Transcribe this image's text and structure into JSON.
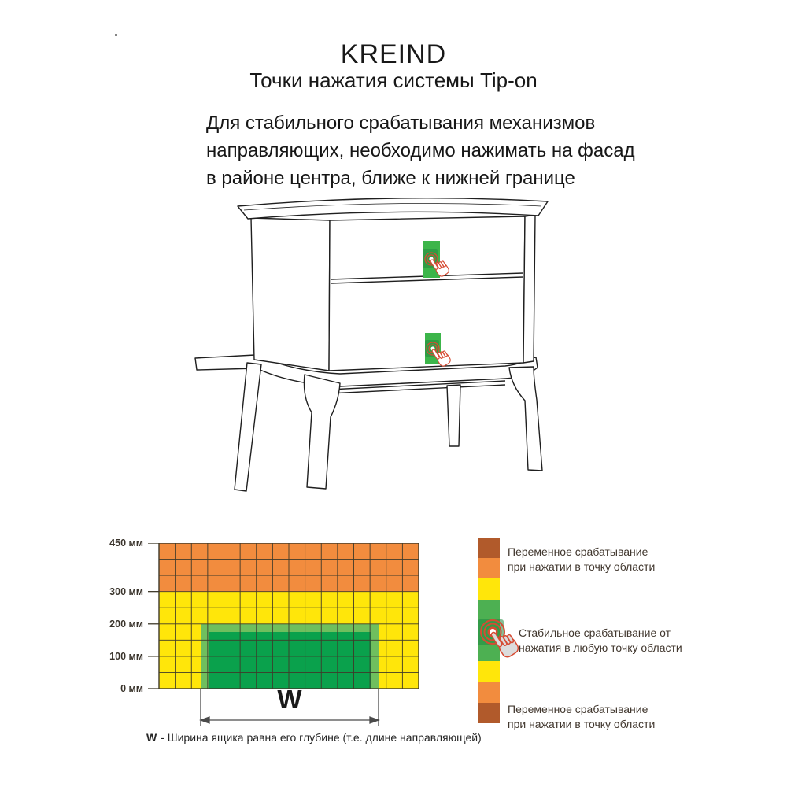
{
  "header": {
    "brand": "KREIND",
    "subtitle": "Точки нажатия системы Tip-on"
  },
  "intro": {
    "lines": [
      "Для стабильного срабатывания механизмов",
      "направляющих, необходимо нажимать на фасад",
      "в районе центра, ближе к нижней границе"
    ]
  },
  "furniture": {
    "press_zone_count": 2,
    "press_zone_color": "#3cb54a",
    "press_zone_inner_color": "#2a9643",
    "hand_ring_color": "#d64b33"
  },
  "chart_data": {
    "type": "heatmap",
    "title": "",
    "xlabel": "",
    "ylabel": "мм",
    "y_axis": {
      "unit": "мм",
      "range_mm": [
        0,
        450
      ],
      "ticks": [
        {
          "mm": 450,
          "label": "450 мм"
        },
        {
          "mm": 300,
          "label": "300 мм"
        },
        {
          "mm": 200,
          "label": "200 мм"
        },
        {
          "mm": 100,
          "label": "100 мм"
        },
        {
          "mm": 0,
          "label": "0 мм"
        }
      ]
    },
    "grid": {
      "columns": 16,
      "rows": 9,
      "cell_mm": 50,
      "lines_on": true
    },
    "zones": [
      {
        "name": "variable-upper",
        "color": "#f28c3e",
        "y_mm": [
          300,
          450
        ],
        "meaning": "Переменное срабатывание при нажатии в точку области"
      },
      {
        "name": "caution",
        "color": "#ffe60a",
        "y_mm": [
          0,
          300
        ],
        "meaning": "Переменное срабатывание при нажатии в точку области"
      },
      {
        "name": "stable-border",
        "color": "#6fbf5e",
        "y_mm": [
          0,
          200
        ],
        "meaning": "Стабильное срабатывание от нажатия в любую точку области"
      },
      {
        "name": "stable-core",
        "color": "#0aa14c",
        "y_mm": [
          0,
          175
        ],
        "meaning": "Стабильное срабатывание от нажатия в любую точку области"
      }
    ],
    "dimension": {
      "label": "W",
      "spans": "ширина стабильной зоны"
    },
    "footnote": {
      "term": "W",
      "rest": "- Ширина ящика равна его глубине (т.е. длине направляющей)"
    }
  },
  "legend": {
    "bar_colors": [
      "#b15a2b",
      "#f28c3e",
      "#ffe60a",
      "#4db052",
      "#4db052",
      "#4db052",
      "#ffe60a",
      "#f28c3e",
      "#b15a2b"
    ],
    "entries": [
      {
        "lines": [
          "Переменное срабатывание",
          "при нажатии в точку области"
        ]
      },
      {
        "lines": [
          "Стабильное срабатывание от",
          "нажатия в любую точку области"
        ]
      },
      {
        "lines": [
          "Переменное срабатывание",
          "при нажатии в точку области"
        ]
      }
    ]
  },
  "colors": {
    "orange": "#f28c3e",
    "yellow": "#ffe60a",
    "green_dark": "#0aa14c",
    "green_light": "#6fbf5e",
    "green_legend": "#4db052",
    "brown": "#b15a2b",
    "ring_red": "#d64b33",
    "line_ink": "#1f1f1f"
  }
}
